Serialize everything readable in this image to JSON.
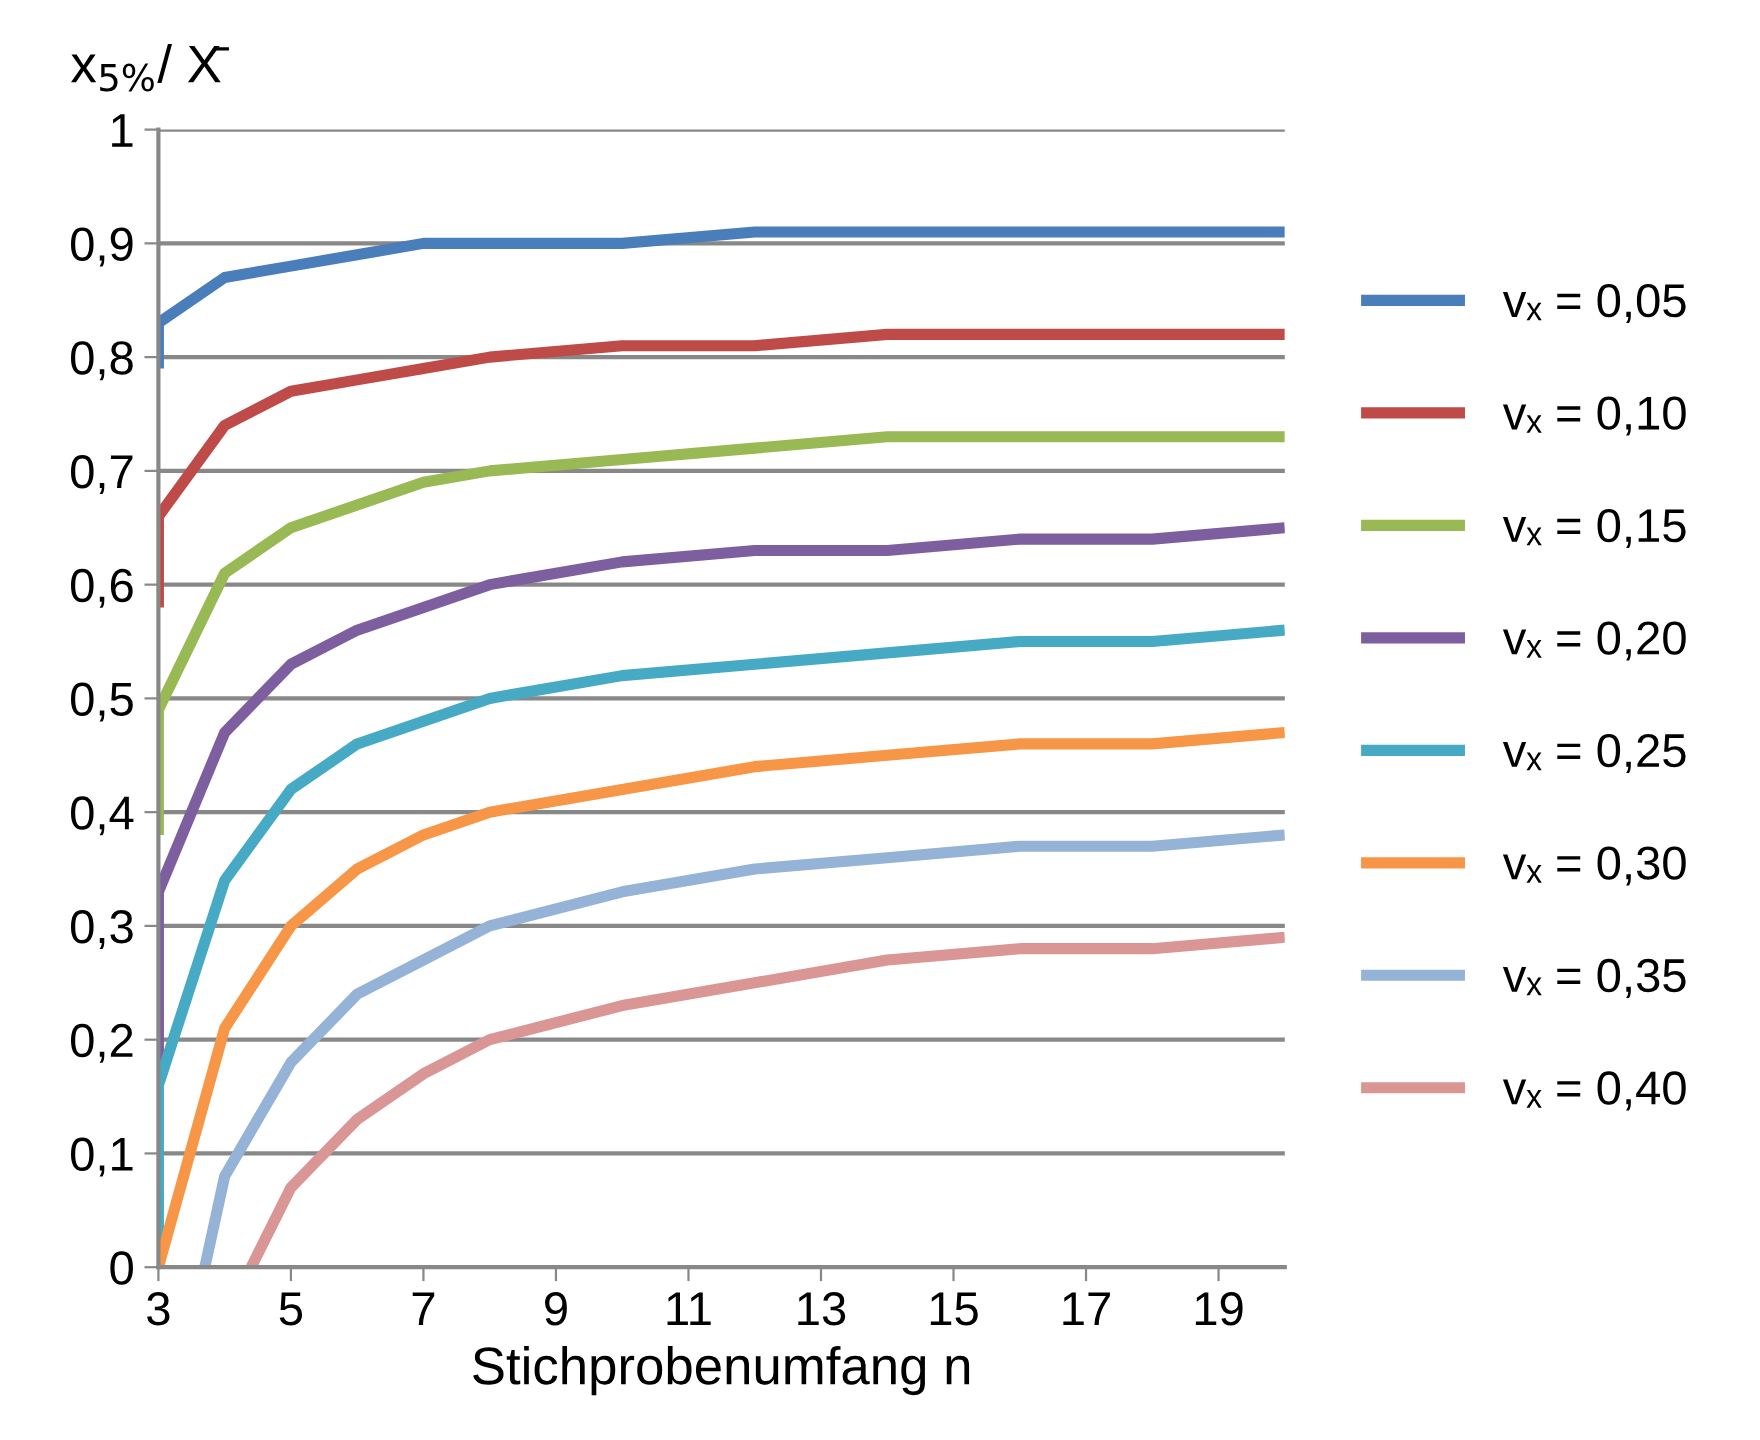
{
  "chart_data": {
    "type": "line",
    "xlabel": "Stichprobenumfang n",
    "ylabel": "x$_{5%}$/ X̄",
    "xlim": [
      3,
      20
    ],
    "xticks": [
      3,
      5,
      7,
      9,
      11,
      13,
      15,
      17,
      19
    ],
    "ylim": [
      0,
      1
    ],
    "yticks": [
      0,
      {
        "value": 0.1,
        "label": "0,1"
      },
      {
        "value": 0.2,
        "label": "0,2"
      },
      {
        "value": 0.3,
        "label": "0,3"
      },
      {
        "value": 0.4,
        "label": "0,4"
      },
      {
        "value": 0.5,
        "label": "0,5"
      },
      {
        "value": 0.6,
        "label": "0,6"
      },
      {
        "value": 0.7,
        "label": "0,7"
      },
      {
        "value": 0.8,
        "label": "0,8"
      },
      {
        "value": 0.9,
        "label": "0,9"
      },
      1
    ],
    "grid": "y",
    "legend": "right",
    "marker": "none",
    "line_style": "solid",
    "series": [
      {
        "name": "vₓ = 0,05",
        "color": "#4a7ebb",
        "x": [
          3,
          3,
          4,
          5,
          6,
          7,
          8,
          10,
          12,
          14,
          16,
          18,
          20
        ],
        "values": [
          0.79,
          0.83,
          0.87,
          0.88,
          0.89,
          0.9,
          0.9,
          0.9,
          0.91,
          0.91,
          0.91,
          0.91,
          0.91
        ]
      },
      {
        "name": "vₓ = 0,10",
        "color": "#be4b48",
        "x": [
          3,
          3,
          4,
          5,
          6,
          7,
          8,
          10,
          12,
          14,
          16,
          18,
          20
        ],
        "values": [
          0.58,
          0.66,
          0.74,
          0.77,
          0.78,
          0.79,
          0.8,
          0.81,
          0.81,
          0.82,
          0.82,
          0.82,
          0.82
        ]
      },
      {
        "name": "vₓ = 0,15",
        "color": "#98b954",
        "x": [
          3,
          3,
          4,
          5,
          6,
          7,
          8,
          10,
          12,
          14,
          16,
          18,
          20
        ],
        "values": [
          0.38,
          0.49,
          0.61,
          0.65,
          0.67,
          0.69,
          0.7,
          0.71,
          0.72,
          0.73,
          0.73,
          0.73,
          0.73
        ]
      },
      {
        "name": "vₓ = 0,20",
        "color": "#7d5fa0",
        "x": [
          3,
          3,
          4,
          5,
          6,
          7,
          8,
          10,
          12,
          14,
          16,
          18,
          20
        ],
        "values": [
          0.17,
          0.33,
          0.47,
          0.53,
          0.56,
          0.58,
          0.6,
          0.62,
          0.63,
          0.63,
          0.64,
          0.64,
          0.65
        ]
      },
      {
        "name": "vₓ = 0,25",
        "color": "#46aac5",
        "x": [
          3,
          3,
          4,
          5,
          6,
          7,
          8,
          10,
          12,
          14,
          16,
          18,
          20
        ],
        "values": [
          0.0,
          0.16,
          0.34,
          0.42,
          0.46,
          0.48,
          0.5,
          0.52,
          0.53,
          0.54,
          0.55,
          0.55,
          0.56
        ]
      },
      {
        "name": "vₓ = 0,30",
        "color": "#f79646",
        "x": [
          3,
          4,
          5,
          6,
          7,
          8,
          10,
          12,
          14,
          16,
          18,
          20
        ],
        "values": [
          0.0,
          0.21,
          0.3,
          0.35,
          0.38,
          0.4,
          0.42,
          0.44,
          0.45,
          0.46,
          0.46,
          0.47
        ]
      },
      {
        "name": "vₓ = 0,35",
        "color": "#94b3d6",
        "x": [
          3.7,
          4,
          5,
          6,
          7,
          8,
          10,
          12,
          14,
          16,
          18,
          20
        ],
        "values": [
          0.0,
          0.08,
          0.18,
          0.24,
          0.27,
          0.3,
          0.33,
          0.35,
          0.36,
          0.37,
          0.37,
          0.38
        ]
      },
      {
        "name": "vₓ = 0,40",
        "color": "#d99694",
        "x": [
          4.4,
          5,
          6,
          7,
          8,
          10,
          12,
          14,
          16,
          18,
          20
        ],
        "values": [
          0.0,
          0.07,
          0.13,
          0.17,
          0.2,
          0.23,
          0.25,
          0.27,
          0.28,
          0.28,
          0.29
        ]
      }
    ]
  }
}
